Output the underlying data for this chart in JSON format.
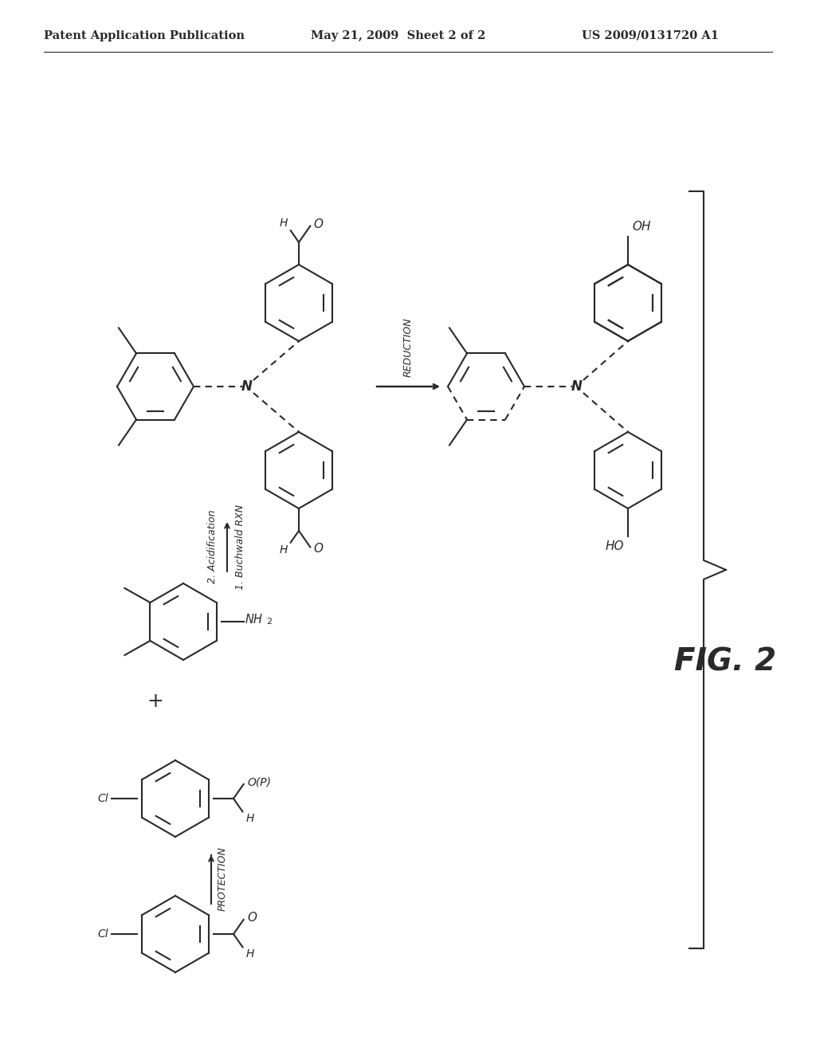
{
  "header_left": "Patent Application Publication",
  "header_middle": "May 21, 2009  Sheet 2 of 2",
  "header_right": "US 2009/0131720 A1",
  "fig_label": "FIG. 2",
  "background_color": "#ffffff",
  "line_color": "#2a2a2a",
  "text_color": "#2a2a2a",
  "header_fontsize": 10.5,
  "fig_label_fontsize": 28
}
